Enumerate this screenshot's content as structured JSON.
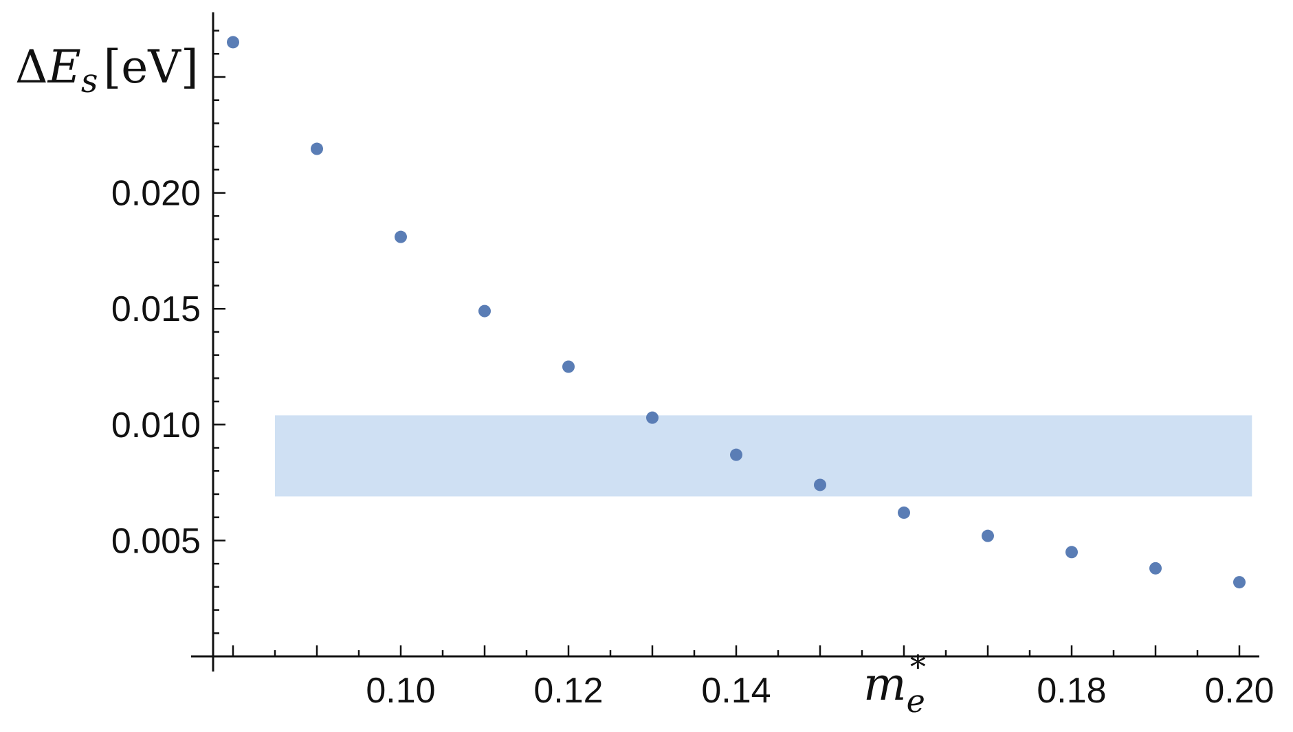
{
  "chart_data": {
    "type": "scatter",
    "title": "",
    "xlabel": "m_e^*",
    "ylabel": "ΔE_s [eV]",
    "ylabel_parts": {
      "delta": "Δ",
      "symbol": "E",
      "subscript": "s",
      "unit": "[eV]"
    },
    "xlabel_parts": {
      "symbol": "m",
      "subscript": "e",
      "superscript": "*"
    },
    "xlim": [
      0.0775,
      0.2025
    ],
    "ylim": [
      0.0,
      0.0278
    ],
    "x_ticks": [
      {
        "value": 0.1,
        "label": "0.10"
      },
      {
        "value": 0.12,
        "label": "0.12"
      },
      {
        "value": 0.14,
        "label": "0.14"
      },
      {
        "value": 0.18,
        "label": "0.18"
      },
      {
        "value": 0.2,
        "label": "0.20"
      }
    ],
    "y_ticks": [
      {
        "value": 0.005,
        "label": "0.005"
      },
      {
        "value": 0.01,
        "label": "0.010"
      },
      {
        "value": 0.015,
        "label": "0.015"
      },
      {
        "value": 0.02,
        "label": "0.020"
      }
    ],
    "series": [
      {
        "x": [
          0.08,
          0.09,
          0.1,
          0.11,
          0.12,
          0.13,
          0.14,
          0.15,
          0.16,
          0.17,
          0.18,
          0.19,
          0.2
        ],
        "y": [
          0.0265,
          0.0219,
          0.0181,
          0.0149,
          0.0125,
          0.0103,
          0.0087,
          0.0074,
          0.0062,
          0.0052,
          0.0045,
          0.0038,
          0.0032
        ],
        "color": "#5a7db5"
      }
    ],
    "band": {
      "x_from": 0.085,
      "x_to": 0.2015,
      "y_from": 0.0069,
      "y_to": 0.0104,
      "color": "#cfe0f3"
    },
    "grid": false,
    "legend": "none"
  }
}
